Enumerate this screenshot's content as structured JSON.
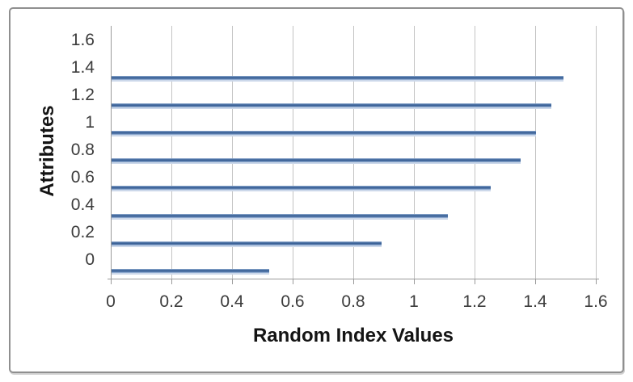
{
  "chart_data": {
    "type": "bar",
    "orientation": "horizontal",
    "title": "",
    "xlabel": "Random Index Values",
    "ylabel": "Attributes",
    "x_tick_labels": [
      "0",
      "0.2",
      "0.4",
      "0.6",
      "0.8",
      "1",
      "1.2",
      "1.4",
      "1.6"
    ],
    "y_tick_labels_top_to_bottom": [
      "1.6",
      "1.4",
      "1.2",
      "1",
      "0.8",
      "0.6",
      "0.4",
      "0.2",
      "0"
    ],
    "xlim": [
      0,
      1.6
    ],
    "values_bottom_to_top": [
      0.52,
      0.89,
      1.11,
      1.25,
      1.35,
      1.4,
      1.45,
      1.49
    ],
    "bar_count": 8,
    "legend": "none",
    "gridlines": "vertical-only",
    "colors": {
      "bar_fill": "#4f81bd",
      "bar_fill_dark": "#3c6297",
      "bar_edge_light": "#ccd8ea",
      "gridline": "#c3c3c3",
      "axis_line": "#9a9a9a",
      "tick_text": "#3c3c3c",
      "title_text": "#141414",
      "frame_border": "#8f8f8f",
      "background": "#ffffff"
    }
  }
}
